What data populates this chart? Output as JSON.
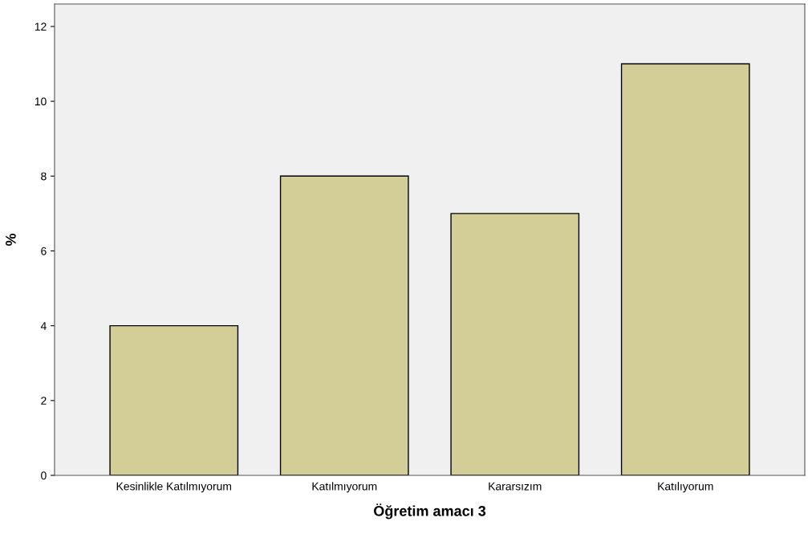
{
  "chart_data": {
    "type": "bar",
    "xlabel": "Öğretim amacı 3",
    "ylabel": "%",
    "categories": [
      "Kesinlikle Katılmıyorum",
      "Katılmıyorum",
      "Kararsızım",
      "Katılıyorum"
    ],
    "values": [
      4,
      8,
      7,
      11
    ],
    "color": "#d3ce97",
    "ylim": [
      0,
      12.6
    ],
    "yticks": [
      0,
      2,
      4,
      6,
      8,
      10,
      12
    ],
    "grid": false
  }
}
